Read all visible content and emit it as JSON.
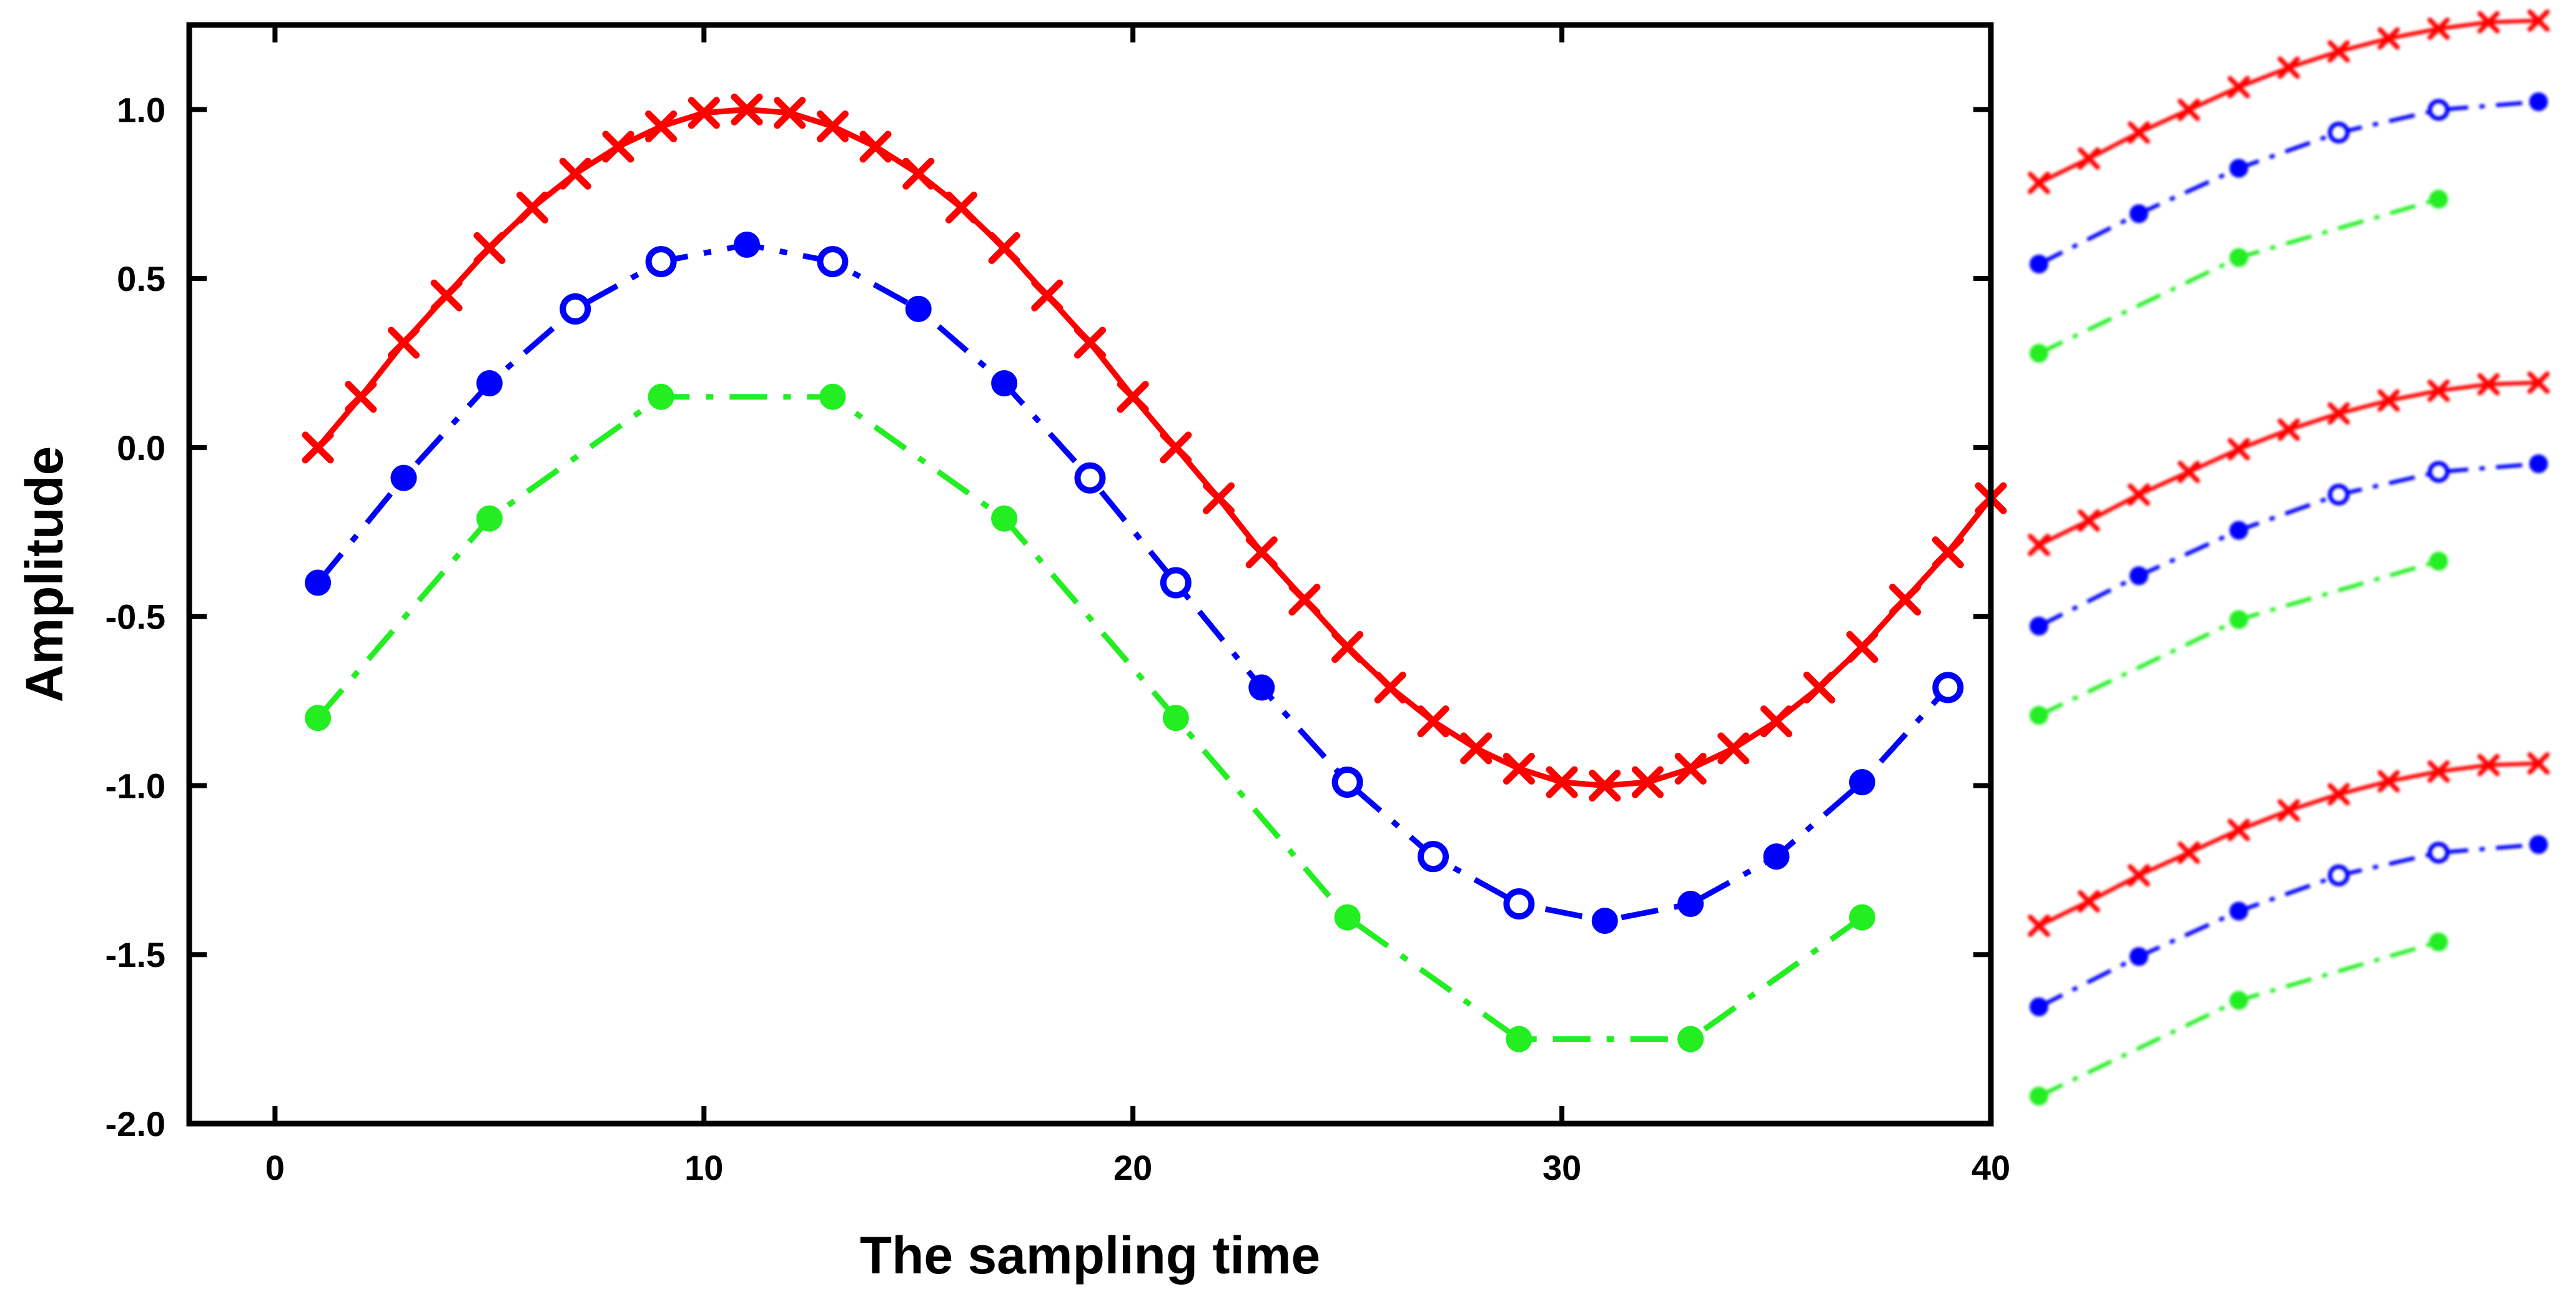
{
  "chart_data": {
    "type": "line",
    "title": "",
    "xlabel": "The sampling time",
    "ylabel": "Amplitude",
    "xlim": [
      -2,
      40
    ],
    "ylim": [
      -2.0,
      1.25
    ],
    "x_ticks": [
      0,
      10,
      20,
      30,
      40
    ],
    "x_tick_labels": [
      "0",
      "10",
      "20",
      "30",
      "40"
    ],
    "y_ticks": [
      1.0,
      0.5,
      0.0,
      -0.5,
      -1.0,
      -1.5,
      -2.0
    ],
    "y_tick_labels": [
      "1.0",
      "0.5",
      "0.0",
      "-0.5",
      "-1.0",
      "-1.5",
      "-2.0"
    ],
    "grid": false,
    "series": [
      {
        "name": "red",
        "color": "#ff0000",
        "marker": "x",
        "line_style": "solid",
        "x": [
          1,
          2,
          3,
          4,
          5,
          6,
          7,
          8,
          9,
          10,
          11,
          12,
          13,
          14,
          15,
          16,
          17,
          18,
          19,
          20,
          21,
          22,
          23,
          24,
          25,
          26,
          27,
          28,
          29,
          30,
          31,
          32,
          33,
          34,
          35,
          36,
          37,
          38,
          39,
          40
        ],
        "values": [
          0.0,
          0.15,
          0.31,
          0.45,
          0.59,
          0.71,
          0.81,
          0.89,
          0.95,
          0.99,
          1.0,
          0.99,
          0.95,
          0.89,
          0.81,
          0.71,
          0.59,
          0.45,
          0.31,
          0.15,
          0.0,
          -0.15,
          -0.31,
          -0.45,
          -0.59,
          -0.71,
          -0.81,
          -0.89,
          -0.95,
          -0.99,
          -1.0,
          -0.99,
          -0.95,
          -0.89,
          -0.81,
          -0.71,
          -0.59,
          -0.45,
          -0.31,
          -0.15
        ]
      },
      {
        "name": "blue",
        "color": "#0000ff",
        "marker": "circle",
        "line_style": "dash-dot",
        "x": [
          1,
          3,
          5,
          7,
          9,
          11,
          13,
          15,
          17,
          19,
          21,
          23,
          25,
          27,
          29,
          31,
          33,
          35,
          37,
          39
        ],
        "values": [
          -0.4,
          -0.09,
          0.19,
          0.41,
          0.55,
          0.6,
          0.55,
          0.41,
          0.19,
          -0.09,
          -0.4,
          -0.71,
          -0.99,
          -1.21,
          -1.35,
          -1.4,
          -1.35,
          -1.21,
          -0.99,
          -0.71
        ],
        "hollow": [
          false,
          false,
          false,
          true,
          true,
          false,
          true,
          false,
          false,
          true,
          true,
          false,
          true,
          true,
          true,
          false,
          false,
          false,
          false,
          true
        ]
      },
      {
        "name": "green",
        "color": "#22ee22",
        "marker": "circle",
        "line_style": "dash-dot",
        "x": [
          1,
          5,
          9,
          13,
          17,
          21,
          25,
          29,
          33,
          37
        ],
        "values": [
          -0.8,
          -0.21,
          0.15,
          0.15,
          -0.21,
          -0.8,
          -1.39,
          -1.75,
          -1.75,
          -1.39
        ]
      }
    ],
    "inset_note": "three blurred zoomed copies of the curve peaks on the right side"
  }
}
